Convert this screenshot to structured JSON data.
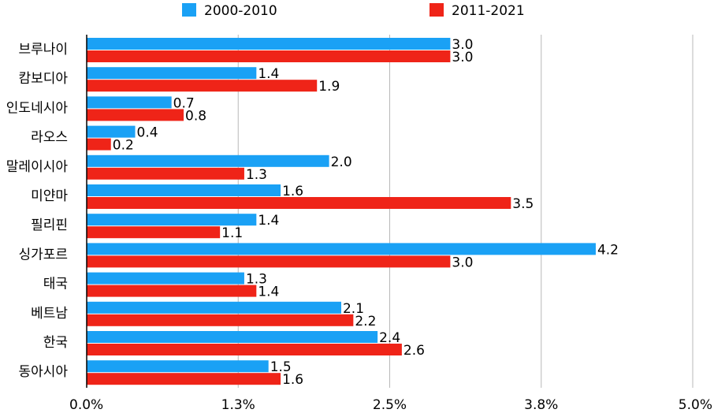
{
  "chart_data": {
    "type": "bar",
    "orientation": "horizontal",
    "title": "",
    "xlabel": "",
    "ylabel": "",
    "categories": [
      "브루나이",
      "캄보디아",
      "인도네시아",
      "라오스",
      "말레이시아",
      "미얀마",
      "필리핀",
      "싱가포르",
      "태국",
      "베트남",
      "한국",
      "동아시아"
    ],
    "series": [
      {
        "name": "2000-2010",
        "color": "#1aa1f5",
        "values": [
          3.0,
          1.4,
          0.7,
          0.4,
          2.0,
          1.6,
          1.4,
          4.2,
          1.3,
          2.1,
          2.4,
          1.5
        ]
      },
      {
        "name": "2011-2021",
        "color": "#ef2418",
        "values": [
          3.0,
          1.9,
          0.8,
          0.2,
          1.3,
          3.5,
          1.1,
          3.0,
          1.4,
          2.2,
          2.6,
          1.6
        ]
      }
    ],
    "xlim": [
      0,
      5.0
    ],
    "xticks": [
      0,
      1.25,
      2.5,
      3.75,
      5.0
    ],
    "xtick_labels": [
      "0.0%",
      "1.3%",
      "2.5%",
      "3.8%",
      "5.0%"
    ],
    "grid": true,
    "legend_position": "top"
  }
}
